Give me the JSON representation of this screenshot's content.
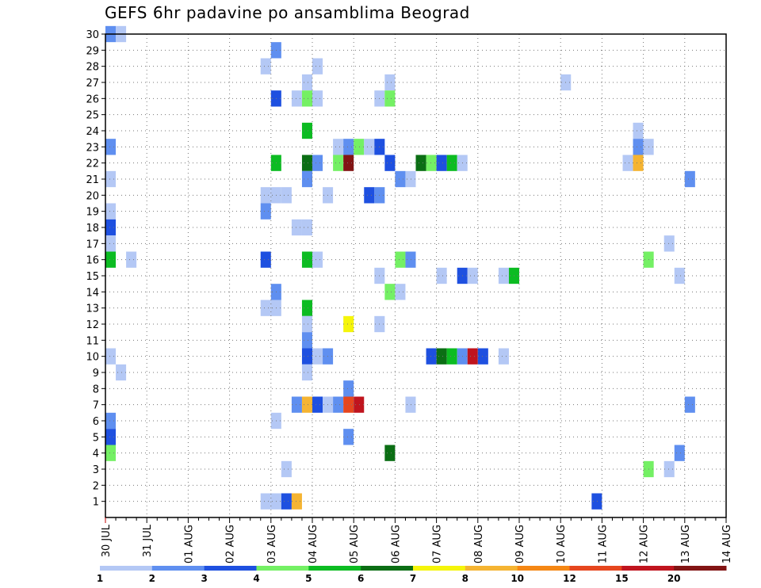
{
  "chart_data": {
    "type": "heatmap",
    "title": "GEFS 6hr padavine po ansamblima Beograd",
    "x_tick_labels": [
      "30 JUL",
      "31 JUL",
      "01 AUG",
      "02 AUG",
      "03 AUG",
      "04 AUG",
      "05 AUG",
      "06 AUG",
      "07 AUG",
      "08 AUG",
      "09 AUG",
      "10 AUG",
      "11 AUG",
      "12 AUG",
      "13 AUG",
      "14 AUG"
    ],
    "time_step_hours": 6,
    "y_tick_labels": [
      "1",
      "2",
      "3",
      "4",
      "5",
      "6",
      "7",
      "8",
      "9",
      "10",
      "11",
      "12",
      "13",
      "14",
      "15",
      "16",
      "17",
      "18",
      "19",
      "20",
      "21",
      "22",
      "23",
      "24",
      "25",
      "26",
      "27",
      "28",
      "29",
      "30"
    ],
    "y_range": [
      0,
      30
    ],
    "grid": true,
    "legend": {
      "placement": "bottom",
      "labels": [
        "1",
        "2",
        "3",
        "4",
        "5",
        "6",
        "7",
        "8",
        "10",
        "12",
        "15",
        "20"
      ],
      "colors": [
        "#b4c8f5",
        "#5f8ff0",
        "#1e50e0",
        "#74f064",
        "#0cbc22",
        "#0b6e14",
        "#f5f50a",
        "#f5b432",
        "#f58714",
        "#e6461e",
        "#c0141e",
        "#821414"
      ]
    },
    "cells": [
      {
        "step": 0,
        "member": 30,
        "level": 2
      },
      {
        "step": 1,
        "member": 30,
        "level": 1
      },
      {
        "step": 16,
        "member": 29,
        "level": 2
      },
      {
        "step": 15,
        "member": 28,
        "level": 1
      },
      {
        "step": 20,
        "member": 28,
        "level": 1
      },
      {
        "step": 19,
        "member": 27,
        "level": 1
      },
      {
        "step": 27,
        "member": 27,
        "level": 1
      },
      {
        "step": 44,
        "member": 27,
        "level": 1
      },
      {
        "step": 16,
        "member": 26,
        "level": 3
      },
      {
        "step": 18,
        "member": 26,
        "level": 1
      },
      {
        "step": 19,
        "member": 26,
        "level": 4
      },
      {
        "step": 20,
        "member": 26,
        "level": 1
      },
      {
        "step": 26,
        "member": 26,
        "level": 1
      },
      {
        "step": 27,
        "member": 26,
        "level": 4
      },
      {
        "step": 19,
        "member": 24,
        "level": 5
      },
      {
        "step": 51,
        "member": 24,
        "level": 1
      },
      {
        "step": 0,
        "member": 23,
        "level": 2
      },
      {
        "step": 22,
        "member": 23,
        "level": 1
      },
      {
        "step": 23,
        "member": 23,
        "level": 2
      },
      {
        "step": 24,
        "member": 23,
        "level": 4
      },
      {
        "step": 25,
        "member": 23,
        "level": 1
      },
      {
        "step": 26,
        "member": 23,
        "level": 3
      },
      {
        "step": 51,
        "member": 23,
        "level": 2
      },
      {
        "step": 52,
        "member": 23,
        "level": 1
      },
      {
        "step": 16,
        "member": 22,
        "level": 5
      },
      {
        "step": 19,
        "member": 22,
        "level": 6
      },
      {
        "step": 20,
        "member": 22,
        "level": 2
      },
      {
        "step": 22,
        "member": 22,
        "level": 4
      },
      {
        "step": 23,
        "member": 22,
        "level": 12
      },
      {
        "step": 27,
        "member": 22,
        "level": 3
      },
      {
        "step": 30,
        "member": 22,
        "level": 6
      },
      {
        "step": 31,
        "member": 22,
        "level": 4
      },
      {
        "step": 32,
        "member": 22,
        "level": 3
      },
      {
        "step": 33,
        "member": 22,
        "level": 5
      },
      {
        "step": 34,
        "member": 22,
        "level": 1
      },
      {
        "step": 50,
        "member": 22,
        "level": 1
      },
      {
        "step": 51,
        "member": 22,
        "level": 8
      },
      {
        "step": 0,
        "member": 21,
        "level": 1
      },
      {
        "step": 19,
        "member": 21,
        "level": 2
      },
      {
        "step": 28,
        "member": 21,
        "level": 2
      },
      {
        "step": 29,
        "member": 21,
        "level": 1
      },
      {
        "step": 56,
        "member": 21,
        "level": 2
      },
      {
        "step": 15,
        "member": 20,
        "level": 1
      },
      {
        "step": 16,
        "member": 20,
        "level": 1
      },
      {
        "step": 17,
        "member": 20,
        "level": 1
      },
      {
        "step": 21,
        "member": 20,
        "level": 1
      },
      {
        "step": 25,
        "member": 20,
        "level": 3
      },
      {
        "step": 26,
        "member": 20,
        "level": 2
      },
      {
        "step": 0,
        "member": 19,
        "level": 1
      },
      {
        "step": 15,
        "member": 19,
        "level": 2
      },
      {
        "step": 0,
        "member": 18,
        "level": 3
      },
      {
        "step": 18,
        "member": 18,
        "level": 1
      },
      {
        "step": 19,
        "member": 18,
        "level": 1
      },
      {
        "step": 0,
        "member": 17,
        "level": 1
      },
      {
        "step": 54,
        "member": 17,
        "level": 1
      },
      {
        "step": 0,
        "member": 16,
        "level": 5
      },
      {
        "step": 2,
        "member": 16,
        "level": 1
      },
      {
        "step": 15,
        "member": 16,
        "level": 3
      },
      {
        "step": 19,
        "member": 16,
        "level": 5
      },
      {
        "step": 20,
        "member": 16,
        "level": 1
      },
      {
        "step": 28,
        "member": 16,
        "level": 4
      },
      {
        "step": 29,
        "member": 16,
        "level": 2
      },
      {
        "step": 52,
        "member": 16,
        "level": 4
      },
      {
        "step": 26,
        "member": 15,
        "level": 1
      },
      {
        "step": 32,
        "member": 15,
        "level": 1
      },
      {
        "step": 34,
        "member": 15,
        "level": 3
      },
      {
        "step": 35,
        "member": 15,
        "level": 1
      },
      {
        "step": 38,
        "member": 15,
        "level": 1
      },
      {
        "step": 39,
        "member": 15,
        "level": 5
      },
      {
        "step": 55,
        "member": 15,
        "level": 1
      },
      {
        "step": 16,
        "member": 14,
        "level": 2
      },
      {
        "step": 27,
        "member": 14,
        "level": 4
      },
      {
        "step": 28,
        "member": 14,
        "level": 1
      },
      {
        "step": 15,
        "member": 13,
        "level": 1
      },
      {
        "step": 16,
        "member": 13,
        "level": 1
      },
      {
        "step": 19,
        "member": 13,
        "level": 5
      },
      {
        "step": 19,
        "member": 12,
        "level": 1
      },
      {
        "step": 23,
        "member": 12,
        "level": 7
      },
      {
        "step": 26,
        "member": 12,
        "level": 1
      },
      {
        "step": 19,
        "member": 11,
        "level": 2
      },
      {
        "step": 0,
        "member": 10,
        "level": 1
      },
      {
        "step": 19,
        "member": 10,
        "level": 3
      },
      {
        "step": 20,
        "member": 10,
        "level": 1
      },
      {
        "step": 21,
        "member": 10,
        "level": 2
      },
      {
        "step": 31,
        "member": 10,
        "level": 3
      },
      {
        "step": 32,
        "member": 10,
        "level": 6
      },
      {
        "step": 33,
        "member": 10,
        "level": 5
      },
      {
        "step": 34,
        "member": 10,
        "level": 2
      },
      {
        "step": 35,
        "member": 10,
        "level": 11
      },
      {
        "step": 36,
        "member": 10,
        "level": 3
      },
      {
        "step": 38,
        "member": 10,
        "level": 1
      },
      {
        "step": 1,
        "member": 9,
        "level": 1
      },
      {
        "step": 19,
        "member": 9,
        "level": 1
      },
      {
        "step": 23,
        "member": 8,
        "level": 2
      },
      {
        "step": 18,
        "member": 7,
        "level": 2
      },
      {
        "step": 19,
        "member": 7,
        "level": 8
      },
      {
        "step": 20,
        "member": 7,
        "level": 3
      },
      {
        "step": 21,
        "member": 7,
        "level": 1
      },
      {
        "step": 22,
        "member": 7,
        "level": 2
      },
      {
        "step": 23,
        "member": 7,
        "level": 10
      },
      {
        "step": 24,
        "member": 7,
        "level": 11
      },
      {
        "step": 29,
        "member": 7,
        "level": 1
      },
      {
        "step": 56,
        "member": 7,
        "level": 2
      },
      {
        "step": 0,
        "member": 6,
        "level": 2
      },
      {
        "step": 16,
        "member": 6,
        "level": 1
      },
      {
        "step": 0,
        "member": 5,
        "level": 3
      },
      {
        "step": 23,
        "member": 5,
        "level": 2
      },
      {
        "step": 0,
        "member": 4,
        "level": 4
      },
      {
        "step": 27,
        "member": 4,
        "level": 6
      },
      {
        "step": 55,
        "member": 4,
        "level": 2
      },
      {
        "step": 17,
        "member": 3,
        "level": 1
      },
      {
        "step": 52,
        "member": 3,
        "level": 4
      },
      {
        "step": 54,
        "member": 3,
        "level": 1
      },
      {
        "step": 15,
        "member": 1,
        "level": 1
      },
      {
        "step": 16,
        "member": 1,
        "level": 1
      },
      {
        "step": 17,
        "member": 1,
        "level": 3
      },
      {
        "step": 18,
        "member": 1,
        "level": 8
      },
      {
        "step": 47,
        "member": 1,
        "level": 3
      }
    ]
  }
}
